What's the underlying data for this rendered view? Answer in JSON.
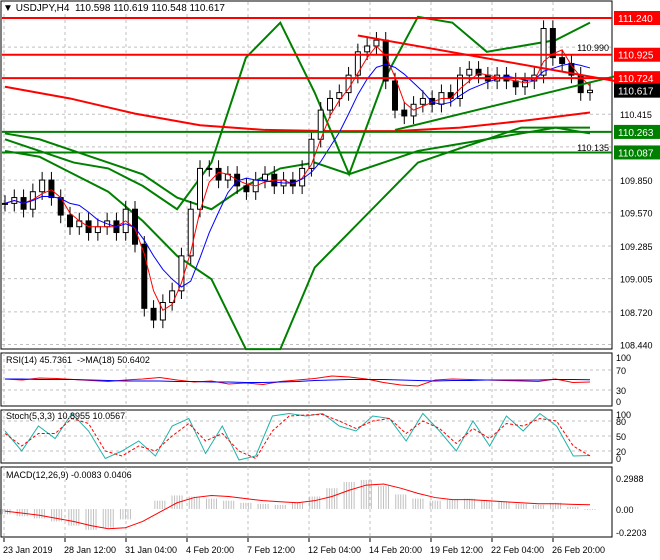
{
  "header": {
    "symbol": "USDJPY,H4",
    "open": "110.598",
    "high": "110.619",
    "low": "110.548",
    "close": "110.617"
  },
  "colors": {
    "bull": "#000000",
    "bear": "#000000",
    "resistance": "#ff0000",
    "support": "#008000",
    "bands": "#008000",
    "ma": "#ff0000",
    "rsi": "#ff0000",
    "rsi_ma": "#0000ff",
    "stoch_main": "#20b2aa",
    "stoch_signal": "#ff0000",
    "macd_hist": "#c0c0c0",
    "macd_signal": "#ff0000"
  },
  "chart_data": [
    {
      "type": "candlestick",
      "title": "USDJPY,H4",
      "ylim": [
        108.44,
        111.24
      ],
      "y_ticks": [
        "110.990",
        "110.415",
        "110.135",
        "109.850",
        "109.570",
        "109.285",
        "109.005",
        "108.720",
        "108.440"
      ],
      "x_ticks": [
        "23 Jan 2019",
        "28 Jan 12:00",
        "31 Jan 04:00",
        "4 Feb 20:00",
        "7 Feb 12:00",
        "12 Feb 04:00",
        "14 Feb 20:00",
        "19 Feb 12:00",
        "22 Feb 04:00",
        "26 Feb 20:00"
      ],
      "closes": [
        109.65,
        109.7,
        109.6,
        109.75,
        109.85,
        109.7,
        109.55,
        109.45,
        109.5,
        109.4,
        109.45,
        109.5,
        109.4,
        109.6,
        109.3,
        108.75,
        108.65,
        108.8,
        108.9,
        109.2,
        109.6,
        109.95,
        109.95,
        109.85,
        109.9,
        109.8,
        109.75,
        109.85,
        109.9,
        109.8,
        109.85,
        109.8,
        109.95,
        110.2,
        110.45,
        110.55,
        110.6,
        110.75,
        110.95,
        111.0,
        111.05,
        110.7,
        110.45,
        110.4,
        110.5,
        110.55,
        110.5,
        110.6,
        110.55,
        110.75,
        110.8,
        110.75,
        110.7,
        110.75,
        110.7,
        110.65,
        110.7,
        110.75,
        111.15,
        110.9,
        110.85,
        110.75,
        110.6,
        110.62
      ],
      "ma": [
        110.65,
        110.55,
        110.42,
        110.32,
        110.28,
        110.27,
        110.27,
        110.3,
        110.36,
        110.43
      ],
      "band_upper": [
        110.2,
        110.1,
        110.0,
        109.95,
        109.8,
        109.6,
        110.0,
        110.9,
        111.2,
        110.6,
        109.9,
        110.7,
        111.25,
        111.2,
        110.95,
        111.0,
        111.05,
        111.2
      ],
      "band_middle": [
        110.25,
        110.2,
        110.1,
        110.0,
        109.9,
        109.7,
        109.6,
        109.8,
        109.95,
        110.0,
        109.9,
        110.0,
        110.1,
        110.15,
        110.2,
        110.25,
        110.3,
        110.3
      ],
      "band_lower": [
        110.1,
        110.05,
        109.9,
        109.75,
        109.5,
        109.2,
        109.0,
        108.4,
        108.4,
        109.1,
        109.4,
        109.7,
        110.0,
        110.1,
        110.2,
        110.3,
        110.3,
        110.25
      ],
      "levels": [
        {
          "price": "111.240",
          "kind": "resistance"
        },
        {
          "price": "110.925",
          "kind": "resistance"
        },
        {
          "price": "110.724",
          "kind": "resistance"
        },
        {
          "price": "110.617",
          "kind": "current"
        },
        {
          "price": "110.263",
          "kind": "support"
        },
        {
          "price": "110.087",
          "kind": "support"
        }
      ],
      "trendlines": [
        {
          "kind": "resistance",
          "from": [
            38,
            111.09
          ],
          "to": [
            63,
            110.7
          ]
        },
        {
          "kind": "support",
          "from": [
            42,
            110.28
          ],
          "to": [
            63,
            110.74
          ]
        }
      ]
    },
    {
      "type": "line",
      "title": "RSI(14) 45.7361  ->MA(18) 50.6402",
      "ylim": [
        0,
        100
      ],
      "y_ticks": [
        "100",
        "70",
        "30",
        "0"
      ],
      "series": [
        {
          "name": "RSI(14)",
          "values": [
            52,
            50,
            54,
            53,
            51,
            49,
            47,
            50,
            52,
            55,
            50,
            46,
            48,
            42,
            44,
            41,
            47,
            50,
            53,
            58,
            56,
            52,
            45,
            40,
            38,
            50,
            52,
            51,
            50,
            49,
            48,
            47,
            52,
            45,
            46
          ]
        },
        {
          "name": "MA(18)",
          "values": [
            52,
            52,
            51,
            51,
            51,
            50,
            49,
            48,
            48,
            48,
            47,
            47,
            46,
            46,
            45,
            45,
            46,
            47,
            49,
            50,
            51,
            51,
            51,
            50,
            49,
            48,
            49,
            49,
            50,
            50,
            50,
            50,
            51,
            51,
            50.6
          ]
        }
      ]
    },
    {
      "type": "line",
      "title": "Stoch(5,3,3) 10.8955 10.0567",
      "ylim": [
        0,
        100
      ],
      "y_ticks": [
        "100",
        "80",
        "50",
        "20",
        "0"
      ],
      "series": [
        {
          "name": "main",
          "values": [
            60,
            20,
            70,
            45,
            95,
            60,
            5,
            20,
            40,
            10,
            70,
            85,
            15,
            70,
            2,
            10,
            90,
            95,
            90,
            95,
            70,
            60,
            90,
            85,
            40,
            95,
            60,
            20,
            80,
            30,
            90,
            60,
            95,
            70,
            10,
            11
          ]
        },
        {
          "name": "signal",
          "values": [
            55,
            30,
            55,
            55,
            85,
            75,
            20,
            10,
            30,
            20,
            50,
            75,
            40,
            55,
            20,
            5,
            60,
            90,
            92,
            93,
            80,
            65,
            80,
            85,
            55,
            80,
            65,
            35,
            65,
            45,
            75,
            70,
            85,
            80,
            30,
            10
          ]
        }
      ]
    },
    {
      "type": "bar",
      "title": "MACD(12,26,9) -0.0083 0.0406",
      "ylim": [
        -0.2203,
        0.2988
      ],
      "y_ticks": [
        "0.2988",
        "0.00",
        "-0.2203"
      ],
      "series": [
        {
          "name": "MACD",
          "values": [
            -0.05,
            -0.07,
            -0.09,
            -0.12,
            -0.16,
            -0.2,
            -0.18,
            -0.1,
            0.0,
            0.08,
            0.13,
            0.12,
            0.1,
            0.08,
            0.06,
            0.05,
            0.04,
            0.06,
            0.12,
            0.2,
            0.26,
            0.28,
            0.22,
            0.14,
            0.1,
            0.08,
            0.09,
            0.1,
            0.08,
            0.07,
            0.05,
            0.04,
            0.06,
            0.02,
            -0.008
          ]
        },
        {
          "name": "signal",
          "values": [
            -0.02,
            -0.04,
            -0.06,
            -0.09,
            -0.12,
            -0.16,
            -0.19,
            -0.18,
            -0.12,
            -0.03,
            0.06,
            0.11,
            0.13,
            0.12,
            0.1,
            0.08,
            0.07,
            0.06,
            0.08,
            0.12,
            0.18,
            0.23,
            0.24,
            0.2,
            0.15,
            0.11,
            0.09,
            0.09,
            0.08,
            0.07,
            0.06,
            0.05,
            0.05,
            0.045,
            0.0406
          ]
        }
      ]
    }
  ]
}
